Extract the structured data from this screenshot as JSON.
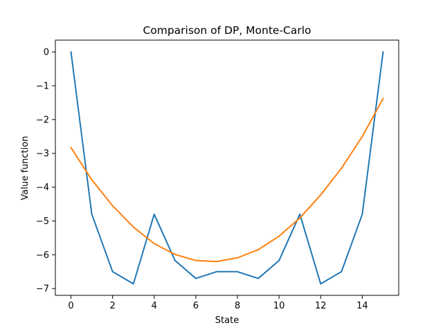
{
  "chart_data": {
    "type": "line",
    "title": "Comparison of DP, Monte-Carlo",
    "xlabel": "State",
    "ylabel": "Value function",
    "xlim": [
      -0.75,
      15.75
    ],
    "ylim": [
      -7.2,
      0.35
    ],
    "x_ticks": [
      0,
      2,
      4,
      6,
      8,
      10,
      12,
      14
    ],
    "x_tick_labels": [
      "0",
      "2",
      "4",
      "6",
      "8",
      "10",
      "12",
      "14"
    ],
    "y_ticks": [
      0,
      -1,
      -2,
      -3,
      -4,
      -5,
      -6,
      -7
    ],
    "y_tick_labels": [
      "0",
      "−1",
      "−2",
      "−3",
      "−4",
      "−5",
      "−6",
      "−7"
    ],
    "grid": false,
    "legend": "none",
    "x": [
      0,
      1,
      2,
      3,
      4,
      5,
      6,
      7,
      8,
      9,
      10,
      11,
      12,
      13,
      14,
      15
    ],
    "series": [
      {
        "name": "blue",
        "color": "#1f77b4",
        "values": [
          0,
          -4.8,
          -6.5,
          -6.86,
          -4.8,
          -6.17,
          -6.7,
          -6.5,
          -6.5,
          -6.7,
          -6.17,
          -4.8,
          -6.86,
          -6.5,
          -4.8,
          0
        ]
      },
      {
        "name": "orange",
        "color": "#ff7f0e",
        "values": [
          -2.83,
          -3.78,
          -4.55,
          -5.18,
          -5.67,
          -5.99,
          -6.17,
          -6.2,
          -6.09,
          -5.85,
          -5.45,
          -4.91,
          -4.23,
          -3.44,
          -2.5,
          -1.38
        ]
      }
    ]
  }
}
